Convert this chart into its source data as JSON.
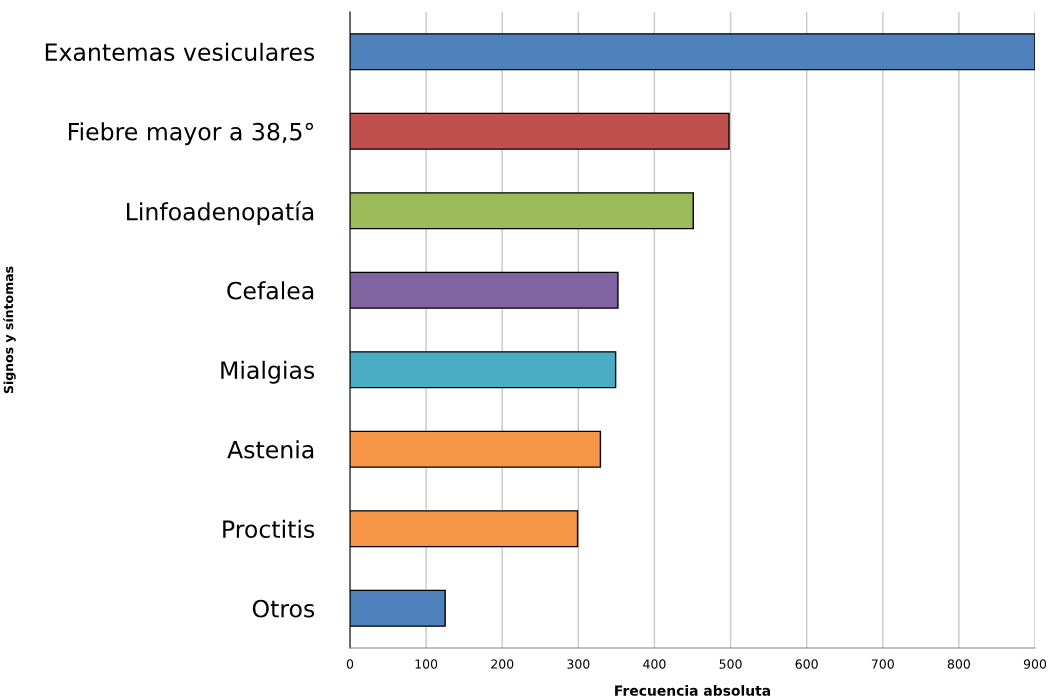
{
  "chart_data": {
    "type": "bar",
    "orientation": "horizontal",
    "xlabel": "Frecuencia absoluta",
    "ylabel": "Signos y síntomas",
    "categories": [
      "Exantemas vesiculares",
      "Fiebre mayor a 38,5°",
      "Linfoadenopatía",
      "Cefalea",
      "Mialgias",
      "Astenia",
      "Proctitis",
      "Otros"
    ],
    "values": [
      900,
      498,
      451,
      352,
      349,
      329,
      299,
      125
    ],
    "colors": [
      "#4f81bd",
      "#c0504d",
      "#9bbb59",
      "#8064a2",
      "#4bacc6",
      "#f79646",
      "#f79646",
      "#4f81bd"
    ],
    "xlim": [
      0,
      900
    ],
    "xticks": [
      0,
      100,
      200,
      300,
      400,
      500,
      600,
      700,
      800,
      900
    ],
    "grid": "x",
    "legend": false
  }
}
